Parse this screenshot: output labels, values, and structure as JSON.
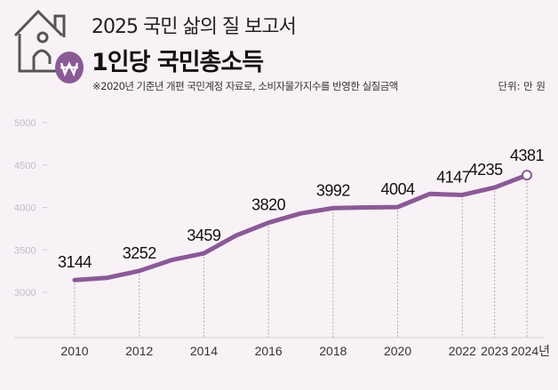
{
  "header": {
    "supertitle": "2025 국민 삶의 질 보고서",
    "title": "1인당 국민총소득",
    "note": "※2020년 기준년 개편 국민계정 자료로, 소비자물가지수를 반영한 실질금액",
    "unit": "단위: 만 원",
    "icons": [
      "house-icon",
      "won-coin-icon"
    ]
  },
  "colors": {
    "background": "#f8f1f6",
    "line": "#8a5a96",
    "coin": "#8a5a96"
  },
  "chart_data": {
    "type": "line",
    "title": "1인당 국민총소득",
    "xlabel": "",
    "ylabel": "",
    "ylim": [
      2500,
      5000
    ],
    "yticks": [
      3000,
      3500,
      4000,
      4500,
      5000
    ],
    "grid": false,
    "x": [
      2010,
      2011,
      2012,
      2013,
      2014,
      2015,
      2016,
      2017,
      2018,
      2019,
      2020,
      2021,
      2022,
      2023,
      2024
    ],
    "values": [
      3144,
      3170,
      3252,
      3380,
      3459,
      3670,
      3820,
      3930,
      3992,
      4000,
      4004,
      4160,
      4147,
      4235,
      4381
    ],
    "labels": {
      "2010": "3144",
      "2012": "3252",
      "2014": "3459",
      "2016": "3820",
      "2018": "3992",
      "2020": "4004",
      "2022": "4147",
      "2023": "4235",
      "2024": "4381"
    },
    "xtick_labels": [
      {
        "year": 2010,
        "label": "2010"
      },
      {
        "year": 2012,
        "label": "2012"
      },
      {
        "year": 2014,
        "label": "2014"
      },
      {
        "year": 2016,
        "label": "2016"
      },
      {
        "year": 2018,
        "label": "2018"
      },
      {
        "year": 2020,
        "label": "2020"
      },
      {
        "year": 2022,
        "label": "2022"
      },
      {
        "year": 2023,
        "label": "2023"
      },
      {
        "year": 2024,
        "label": "2024년"
      }
    ]
  }
}
